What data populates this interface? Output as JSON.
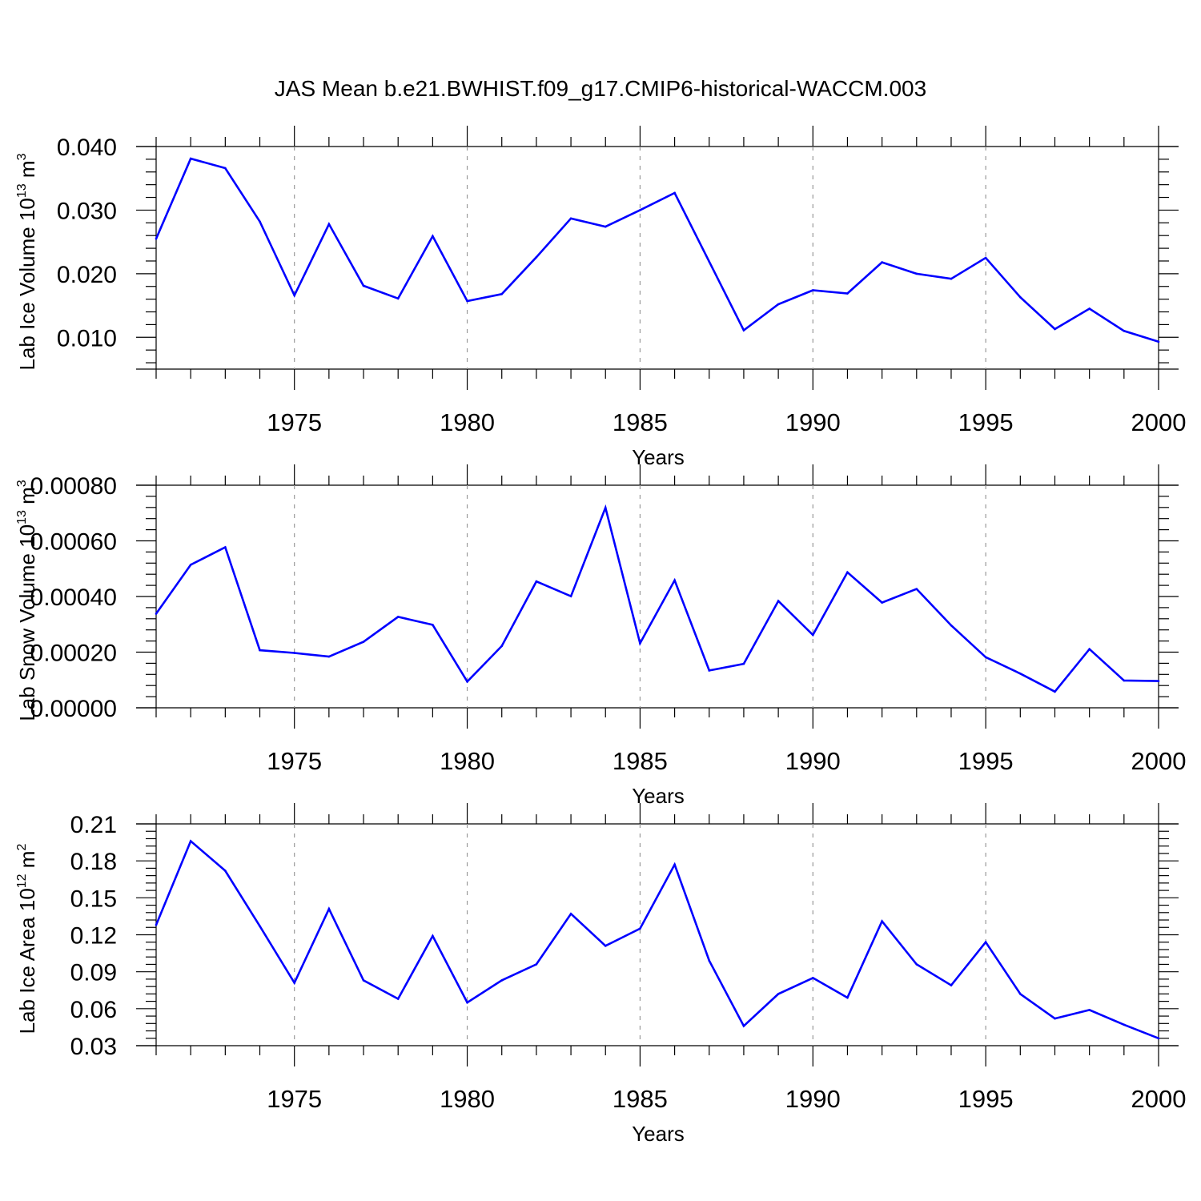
{
  "figure_title": "JAS Mean b.e21.BWHIST.f09_g17.CMIP6-historical-WACCM.003",
  "chart_data": [
    {
      "type": "line",
      "ylabel": "Lab Ice Volume 10",
      "ylabel_exp": "13",
      "ylabel_unit": " m",
      "ylabel_unit_exp": "3",
      "xlabel": "Years",
      "xlim": [
        1971,
        2000
      ],
      "ylim": [
        0.005,
        0.04
      ],
      "yticks": [
        0.01,
        0.02,
        0.03,
        0.04
      ],
      "ytick_labels": [
        "0.010",
        "0.020",
        "0.030",
        "0.040"
      ],
      "xticks": [
        1975,
        1980,
        1985,
        1990,
        1995,
        2000
      ],
      "xtick_labels": [
        "1975",
        "1980",
        "1985",
        "1990",
        "1995",
        "2000"
      ],
      "grid": "vertical dashed at major x ticks",
      "color": "#0000ff",
      "x": [
        1971,
        1972,
        1973,
        1974,
        1975,
        1976,
        1977,
        1978,
        1979,
        1980,
        1981,
        1982,
        1983,
        1984,
        1985,
        1986,
        1987,
        1988,
        1989,
        1990,
        1991,
        1992,
        1993,
        1994,
        1995,
        1996,
        1997,
        1998,
        1999,
        2000
      ],
      "y": [
        0.0255,
        0.0381,
        0.0366,
        0.0282,
        0.0166,
        0.0278,
        0.0181,
        0.0161,
        0.0259,
        0.0157,
        0.0168,
        0.0226,
        0.0287,
        0.0274,
        0.03,
        0.0327,
        0.0219,
        0.0111,
        0.0152,
        0.0174,
        0.0169,
        0.0218,
        0.02,
        0.0192,
        0.0225,
        0.0163,
        0.0113,
        0.0145,
        0.011,
        0.0093
      ]
    },
    {
      "type": "line",
      "ylabel": "Lab Snow Volume 10",
      "ylabel_exp": "13",
      "ylabel_unit": " m",
      "ylabel_unit_exp": "3",
      "xlabel": "Years",
      "xlim": [
        1971,
        2000
      ],
      "ylim": [
        0.0,
        0.0008
      ],
      "yticks": [
        0.0,
        0.0002,
        0.0004,
        0.0006,
        0.0008
      ],
      "ytick_labels": [
        "0.00000",
        "0.00020",
        "0.00040",
        "0.00060",
        "0.00080"
      ],
      "xticks": [
        1975,
        1980,
        1985,
        1990,
        1995,
        2000
      ],
      "xtick_labels": [
        "1975",
        "1980",
        "1985",
        "1990",
        "1995",
        "2000"
      ],
      "grid": "vertical dashed at major x ticks",
      "color": "#0000ff",
      "x": [
        1971,
        1972,
        1973,
        1974,
        1975,
        1976,
        1977,
        1978,
        1979,
        1980,
        1981,
        1982,
        1983,
        1984,
        1985,
        1986,
        1987,
        1988,
        1989,
        1990,
        1991,
        1992,
        1993,
        1994,
        1995,
        1996,
        1997,
        1998,
        1999,
        2000
      ],
      "y": [
        0.000338,
        0.000514,
        0.000577,
        0.000207,
        0.000197,
        0.000184,
        0.000237,
        0.000327,
        0.000298,
        9.4e-05,
        0.000222,
        0.000454,
        0.000401,
        0.000719,
        0.000232,
        0.000458,
        0.000134,
        0.000158,
        0.000384,
        0.000262,
        0.000487,
        0.000378,
        0.000427,
        0.000296,
        0.000182,
        0.000123,
        5.8e-05,
        0.000211,
        9.8e-05,
        9.6e-05
      ]
    },
    {
      "type": "line",
      "ylabel": "Lab Ice Area 10",
      "ylabel_exp": "12",
      "ylabel_unit": " m",
      "ylabel_unit_exp": "2",
      "xlabel": "Years",
      "xlim": [
        1971,
        2000
      ],
      "ylim": [
        0.03,
        0.21
      ],
      "yticks": [
        0.03,
        0.06,
        0.09,
        0.12,
        0.15,
        0.18,
        0.21
      ],
      "ytick_labels": [
        "0.03",
        "0.06",
        "0.09",
        "0.12",
        "0.15",
        "0.18",
        "0.21"
      ],
      "xticks": [
        1975,
        1980,
        1985,
        1990,
        1995,
        2000
      ],
      "xtick_labels": [
        "1975",
        "1980",
        "1985",
        "1990",
        "1995",
        "2000"
      ],
      "grid": "vertical dashed at major x ticks",
      "color": "#0000ff",
      "x": [
        1971,
        1972,
        1973,
        1974,
        1975,
        1976,
        1977,
        1978,
        1979,
        1980,
        1981,
        1982,
        1983,
        1984,
        1985,
        1986,
        1987,
        1988,
        1989,
        1990,
        1991,
        1992,
        1993,
        1994,
        1995,
        1996,
        1997,
        1998,
        1999,
        2000
      ],
      "y": [
        0.128,
        0.196,
        0.172,
        0.127,
        0.081,
        0.141,
        0.083,
        0.068,
        0.119,
        0.065,
        0.083,
        0.096,
        0.137,
        0.111,
        0.125,
        0.177,
        0.099,
        0.046,
        0.072,
        0.085,
        0.069,
        0.131,
        0.096,
        0.079,
        0.114,
        0.072,
        0.052,
        0.059,
        0.047,
        0.036
      ]
    }
  ]
}
